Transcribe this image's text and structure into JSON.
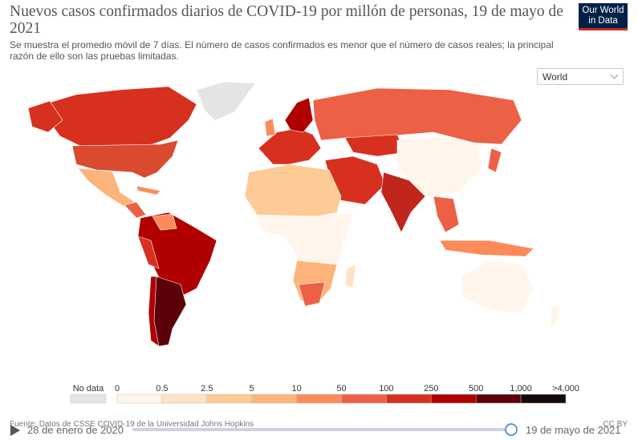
{
  "header": {
    "title": "Nuevos casos confirmados diarios de COVID-19 por millón de personas, 19 de mayo de 2021",
    "subtitle": "Se muestra el promedio móvil de 7 días. El número de casos confirmados es menor que el número de casos reales; la principal razón de ello son las pruebas limitadas.",
    "logo": [
      "Our World",
      "in Data"
    ]
  },
  "region_selector": "World",
  "legend": {
    "no_data": "No data",
    "labels": [
      "0",
      "0.5",
      "2.5",
      "5",
      "10",
      "50",
      "100",
      "250",
      "500",
      "1,000",
      ">4,000"
    ],
    "colors": [
      "#fff5eb",
      "#fee2c3",
      "#fdcb96",
      "#fdb47a",
      "#fc8b59",
      "#ec6146",
      "#d7301f",
      "#b00000",
      "#5c0009",
      "#140a0a"
    ]
  },
  "footer": {
    "source": "Fuente: Datos de CSSE COVID-19 de la Universidad Johns Hopkins",
    "license": "CC BY"
  },
  "timeline": {
    "start": "28 de enero de 2020",
    "end": "19 de mayo de 2021"
  }
}
